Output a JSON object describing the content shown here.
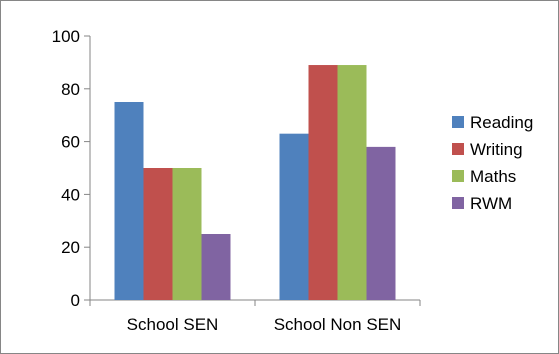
{
  "chart_data": {
    "type": "bar",
    "categories": [
      "School SEN",
      "School Non SEN"
    ],
    "series": [
      {
        "name": "Reading",
        "values": [
          75,
          63
        ],
        "color": "#4F81BD"
      },
      {
        "name": "Writing",
        "values": [
          50,
          89
        ],
        "color": "#C0504D"
      },
      {
        "name": "Maths",
        "values": [
          50,
          89
        ],
        "color": "#9BBB59"
      },
      {
        "name": "RWM",
        "values": [
          25,
          58
        ],
        "color": "#8064A2"
      }
    ],
    "ylim": [
      0,
      100
    ],
    "yticks": [
      "0",
      "20",
      "40",
      "60",
      "80",
      "100"
    ],
    "grid": false,
    "legend_position": "right",
    "axis_color": "#868686"
  }
}
